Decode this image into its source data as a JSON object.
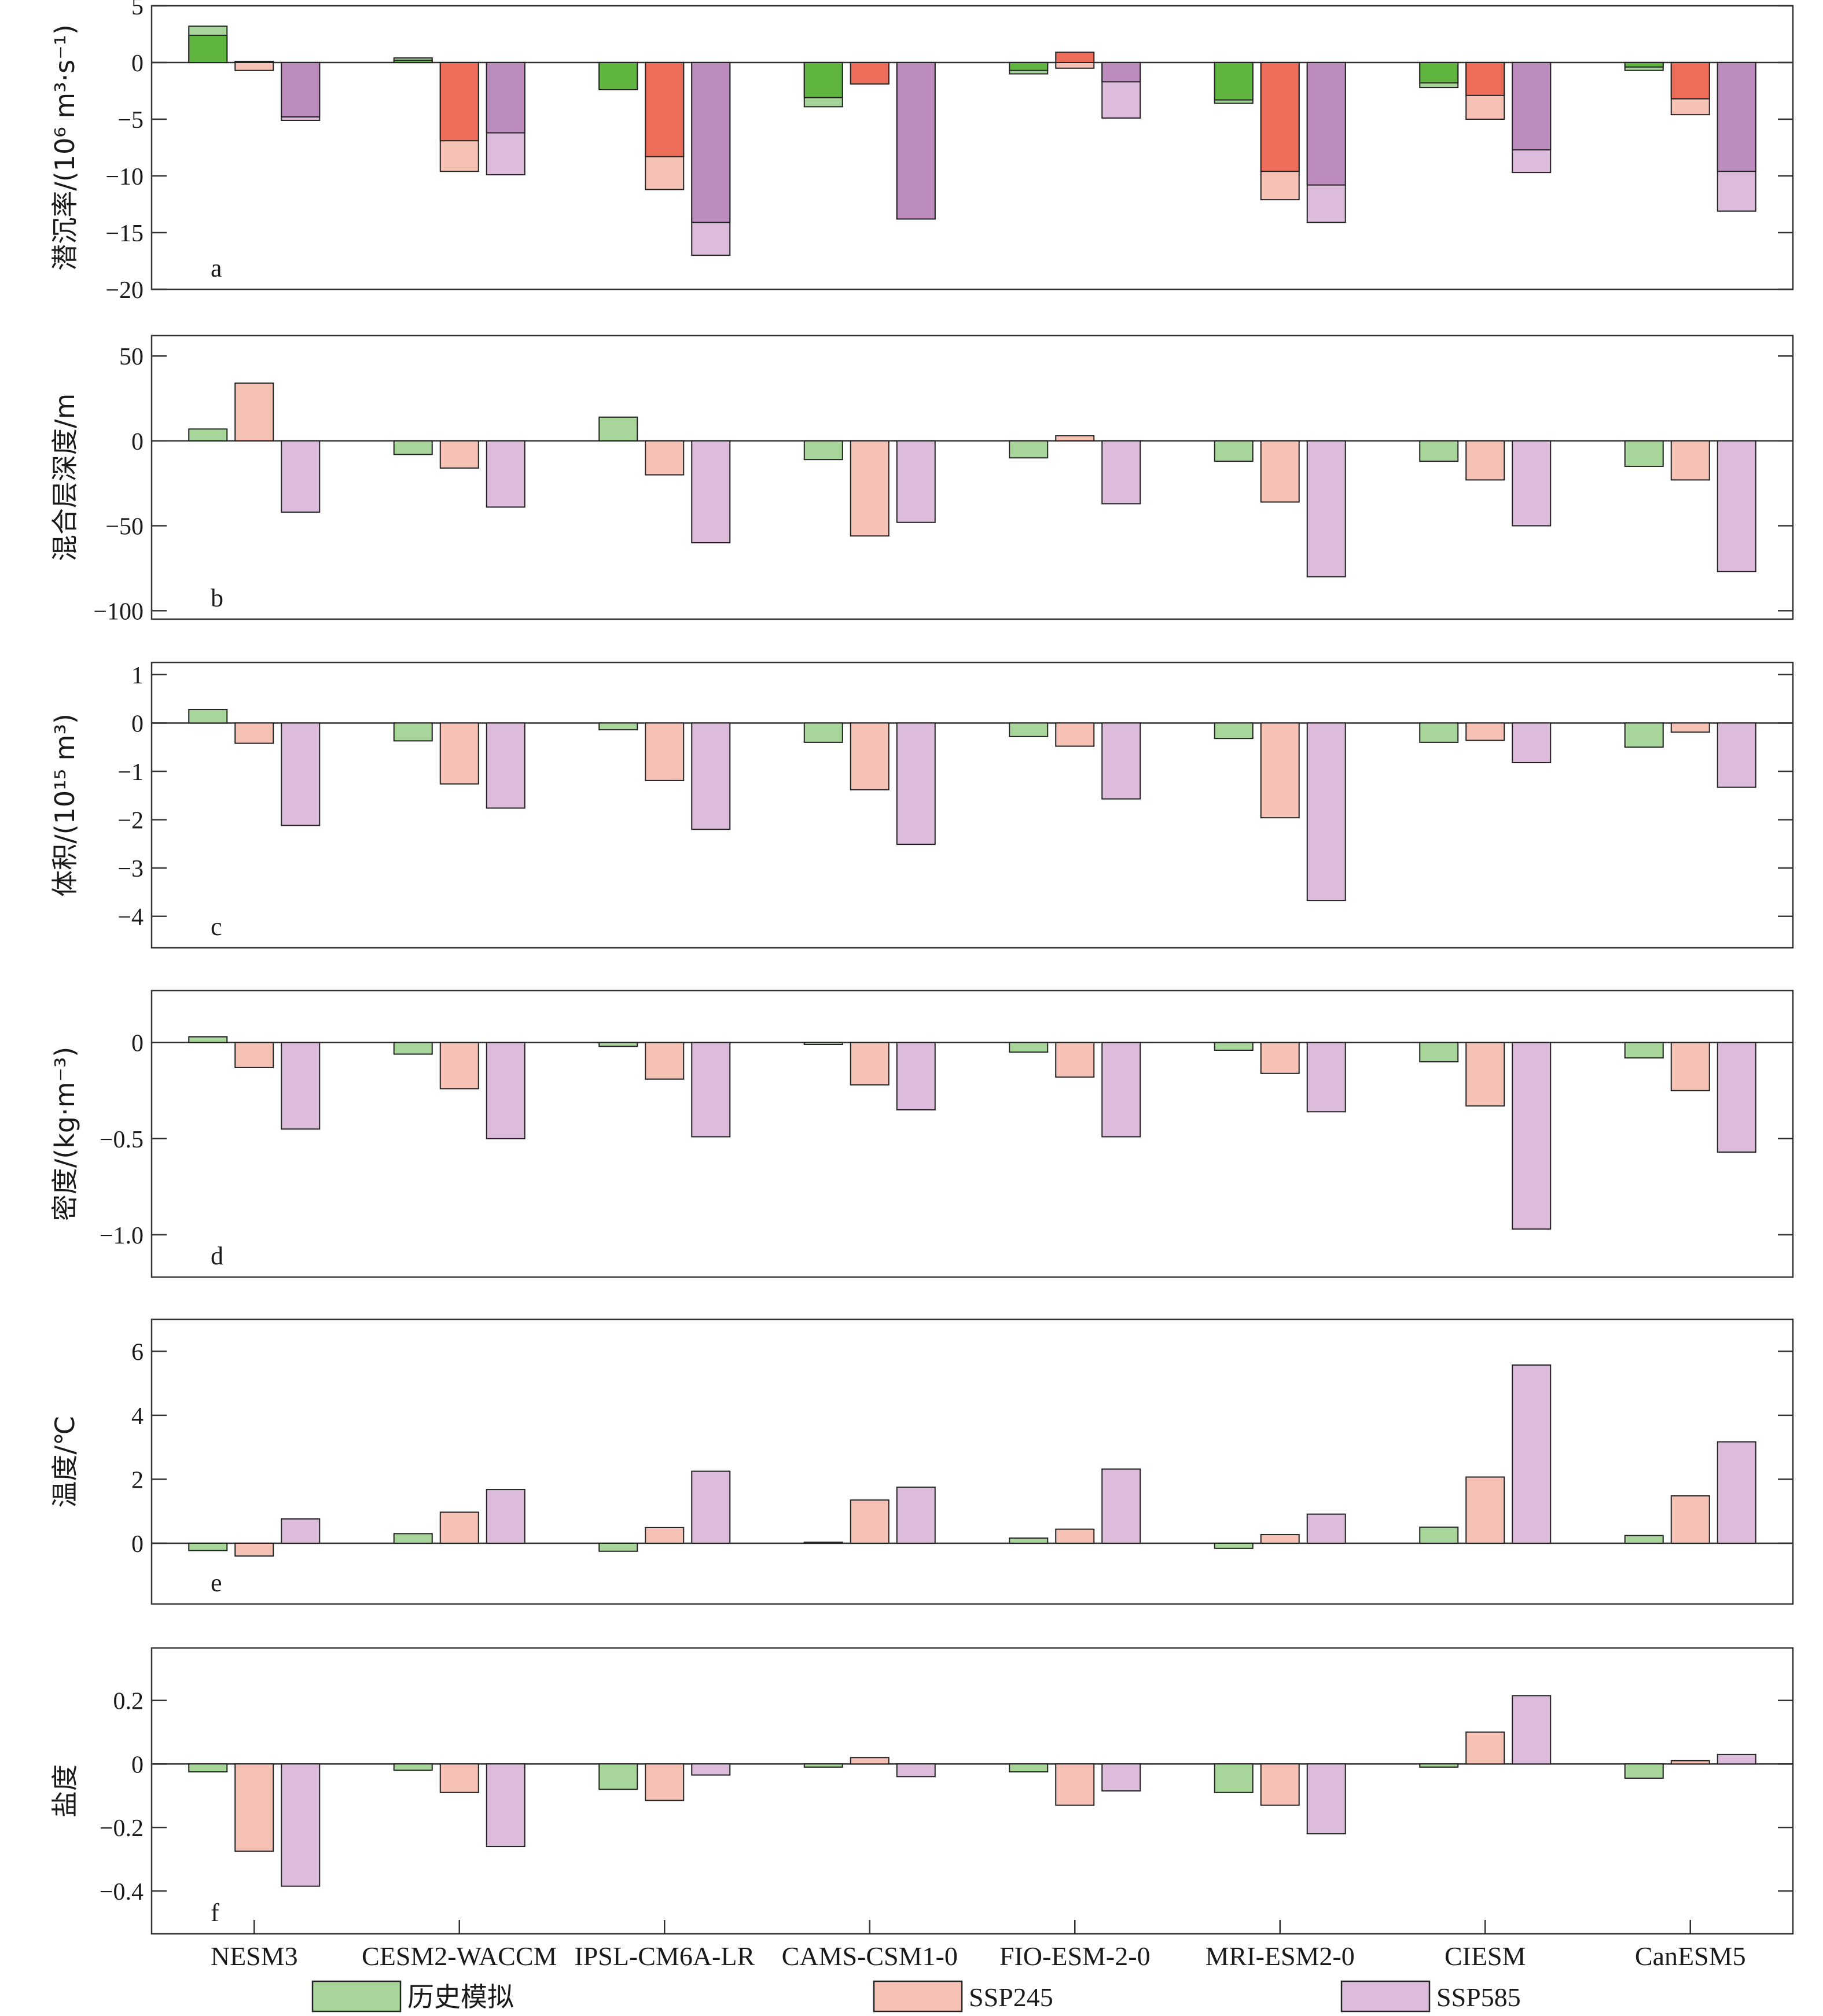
{
  "chart_data": {
    "type": "bar",
    "categories": [
      "NESM3",
      "CESM2-WACCM",
      "IPSL-CM6A-LR",
      "CAMS-CSM1-0",
      "FIO-ESM-2-0",
      "MRI-ESM2-0",
      "CIESM",
      "CanESM5"
    ],
    "legend": [
      {
        "name": "历史模拟",
        "color": "#a8d69a"
      },
      {
        "name": "SSP245",
        "color": "#f6c2b6"
      },
      {
        "name": "SSP585",
        "color": "#dcbcda"
      }
    ],
    "legend_position": "bottom",
    "grid": false,
    "panels": [
      {
        "letter": "a",
        "ylabel": "潜沉率/(10⁶ m³·s⁻¹)",
        "ylim": [
          -20,
          5
        ],
        "yticks": [
          "5",
          "0",
          "−5",
          "−10",
          "−15",
          "−20"
        ],
        "overlay_note": "stacked: dark segment = first component, light segment = total",
        "series": [
          {
            "name": "历史模拟",
            "light": [
              3.2,
              0.4,
              -2.3,
              -3.9,
              -1.0,
              -3.6,
              -2.2,
              -0.7
            ],
            "dark": [
              2.4,
              0.2,
              -2.4,
              -3.1,
              -0.7,
              -3.3,
              -1.8,
              -0.4
            ],
            "dark_color": "#5fb53f"
          },
          {
            "name": "SSP245",
            "light": [
              -0.7,
              -9.6,
              -11.2,
              -1.8,
              -0.5,
              -12.1,
              -5.0,
              -4.6
            ],
            "dark": [
              0.1,
              -6.9,
              -8.3,
              -1.9,
              0.9,
              -9.6,
              -2.9,
              -3.2
            ],
            "dark_color": "#ec6e5a"
          },
          {
            "name": "SSP585",
            "light": [
              -5.1,
              -9.9,
              -17.0,
              -13.8,
              -4.9,
              -14.1,
              -9.7,
              -13.1
            ],
            "dark": [
              -4.8,
              -6.2,
              -14.1,
              -13.8,
              -1.7,
              -10.8,
              -7.7,
              -9.6
            ],
            "dark_color": "#bd8cbf"
          }
        ]
      },
      {
        "letter": "b",
        "ylabel": "混合层深度/m",
        "ylim": [
          -105,
          62
        ],
        "yticks": [
          "50",
          "0",
          "−50",
          "−100"
        ],
        "series": [
          {
            "name": "历史模拟",
            "values": [
              7,
              -8,
              14,
              -11,
              -10,
              -12,
              -12,
              -15
            ]
          },
          {
            "name": "SSP245",
            "values": [
              34,
              -16,
              -20,
              -56,
              3,
              -36,
              -23,
              -23
            ]
          },
          {
            "name": "SSP585",
            "values": [
              -42,
              -39,
              -60,
              -48,
              -37,
              -80,
              -50,
              -77
            ]
          }
        ]
      },
      {
        "letter": "c",
        "ylabel": "体积/(10¹⁵ m³)",
        "ylim": [
          -4.65,
          1.25
        ],
        "yticks": [
          "1",
          "0",
          "−1",
          "−2",
          "−3",
          "−4"
        ],
        "series": [
          {
            "name": "历史模拟",
            "values": [
              0.28,
              -0.37,
              -0.14,
              -0.4,
              -0.28,
              -0.32,
              -0.4,
              -0.5
            ]
          },
          {
            "name": "SSP245",
            "values": [
              -0.42,
              -1.26,
              -1.19,
              -1.38,
              -0.48,
              -1.96,
              -0.36,
              -0.19
            ]
          },
          {
            "name": "SSP585",
            "values": [
              -2.12,
              -1.76,
              -2.2,
              -2.51,
              -1.57,
              -3.67,
              -0.82,
              -1.33
            ]
          }
        ]
      },
      {
        "letter": "d",
        "ylabel": "密度/(kg·m⁻³)",
        "ylim": [
          -1.22,
          0.27
        ],
        "yticks": [
          "0",
          "−0.5",
          "−1.0"
        ],
        "series": [
          {
            "name": "历史模拟",
            "values": [
              0.03,
              -0.06,
              -0.02,
              -0.01,
              -0.05,
              -0.04,
              -0.1,
              -0.08
            ]
          },
          {
            "name": "SSP245",
            "values": [
              -0.13,
              -0.24,
              -0.19,
              -0.22,
              -0.18,
              -0.16,
              -0.33,
              -0.25
            ]
          },
          {
            "name": "SSP585",
            "values": [
              -0.45,
              -0.5,
              -0.49,
              -0.35,
              -0.49,
              -0.36,
              -0.97,
              -0.57
            ]
          }
        ]
      },
      {
        "letter": "e",
        "ylabel": "温度/℃",
        "ylim": [
          -1.9,
          7.0
        ],
        "yticks": [
          "6",
          "4",
          "2",
          "0"
        ],
        "series": [
          {
            "name": "历史模拟",
            "values": [
              -0.23,
              0.3,
              -0.25,
              0.03,
              0.16,
              -0.16,
              0.5,
              0.24
            ]
          },
          {
            "name": "SSP245",
            "values": [
              -0.4,
              0.97,
              0.49,
              1.35,
              0.44,
              0.27,
              2.07,
              1.48
            ]
          },
          {
            "name": "SSP585",
            "values": [
              0.76,
              1.68,
              2.25,
              1.75,
              2.32,
              0.91,
              5.57,
              3.17
            ]
          }
        ]
      },
      {
        "letter": "f",
        "ylabel": "盐度",
        "ylim": [
          -0.535,
          0.365
        ],
        "yticks": [
          "0.2",
          "0",
          "−0.2",
          "−0.4"
        ],
        "series": [
          {
            "name": "历史模拟",
            "values": [
              -0.025,
              -0.02,
              -0.08,
              -0.01,
              -0.025,
              -0.09,
              -0.01,
              -0.045
            ]
          },
          {
            "name": "SSP245",
            "values": [
              -0.275,
              -0.09,
              -0.115,
              0.02,
              -0.13,
              -0.13,
              0.1,
              0.01
            ]
          },
          {
            "name": "SSP585",
            "values": [
              -0.385,
              -0.26,
              -0.035,
              -0.04,
              -0.085,
              -0.22,
              0.215,
              0.03
            ]
          }
        ]
      }
    ]
  }
}
